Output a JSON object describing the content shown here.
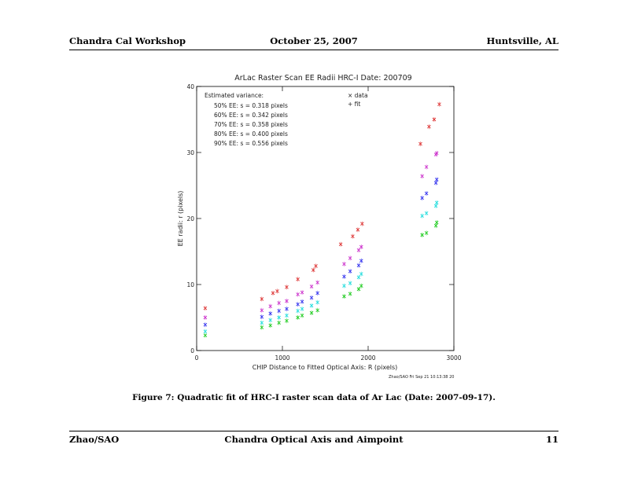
{
  "header": {
    "left": "Chandra Cal Workshop",
    "center": "October 25, 2007",
    "right": "Huntsville, AL"
  },
  "footer": {
    "left": "Zhao/SAO",
    "center": "Chandra Optical Axis and Aimpoint",
    "right": "11"
  },
  "caption": "Figure 7: Quadratic fit of HRC-I raster scan data of Ar Lac (Date: 2007-09-17).",
  "chart_data": {
    "type": "scatter",
    "title": "ArLac Raster Scan EE Radii  HRC-I  Date: 200709",
    "xlabel": "CHIP Distance to Fitted Optical Axis: R (pixels)",
    "ylabel": "EE radii: r (pixels)",
    "xlim": [
      0,
      3000
    ],
    "ylim": [
      0,
      40
    ],
    "xticks": [
      0,
      1000,
      2000,
      3000
    ],
    "yticks": [
      0,
      10,
      20,
      30,
      40
    ],
    "grid": false,
    "legend_entries": [
      "× data",
      "+ fit"
    ],
    "legend_position": "top",
    "annotation_title": "Estimated variance:",
    "annotations": [
      "50% EE: s = 0.318 pixels",
      "60% EE: s = 0.342 pixels",
      "70% EE: s = 0.358 pixels",
      "80% EE: s = 0.400 pixels",
      "90% EE: s = 0.556 pixels"
    ],
    "stamp": "Zhao/SAO Fri Sep 21 10:13:38 20",
    "series": [
      {
        "color": "#22cc22",
        "x": [
          100,
          760,
          860,
          960,
          1050,
          1180,
          1230,
          1340,
          1410,
          1720,
          1790,
          1890,
          1920,
          2630,
          2680,
          2790,
          2800
        ],
        "y": [
          2.3,
          3.5,
          3.8,
          4.2,
          4.5,
          5.0,
          5.3,
          5.7,
          6.1,
          8.2,
          8.6,
          9.3,
          9.8,
          17.5,
          17.8,
          18.9,
          19.4
        ]
      },
      {
        "color": "#22dddd",
        "x": [
          100,
          760,
          860,
          960,
          1050,
          1180,
          1230,
          1340,
          1410,
          1720,
          1790,
          1890,
          1920,
          2630,
          2680,
          2790,
          2800
        ],
        "y": [
          2.9,
          4.2,
          4.6,
          5.0,
          5.3,
          6.0,
          6.3,
          6.8,
          7.3,
          9.8,
          10.2,
          11.1,
          11.6,
          20.4,
          20.8,
          21.9,
          22.4
        ]
      },
      {
        "color": "#3333ee",
        "x": [
          100,
          760,
          860,
          960,
          1050,
          1180,
          1230,
          1340,
          1410,
          1720,
          1790,
          1890,
          1920,
          2630,
          2680,
          2790,
          2800
        ],
        "y": [
          3.9,
          5.1,
          5.6,
          6.0,
          6.3,
          7.0,
          7.4,
          8.0,
          8.7,
          11.2,
          12.0,
          12.9,
          13.6,
          23.1,
          23.8,
          25.4,
          25.9
        ]
      },
      {
        "color": "#cc33cc",
        "x": [
          100,
          760,
          860,
          960,
          1050,
          1180,
          1230,
          1340,
          1410,
          1720,
          1790,
          1890,
          1920,
          2630,
          2680,
          2790,
          2800
        ],
        "y": [
          5.0,
          6.1,
          6.7,
          7.2,
          7.5,
          8.5,
          8.8,
          9.7,
          10.3,
          13.1,
          14.0,
          15.2,
          15.7,
          26.4,
          27.8,
          29.7,
          29.9
        ]
      },
      {
        "color": "#dd3333",
        "x": [
          100,
          760,
          890,
          940,
          1050,
          1180,
          1360,
          1390,
          1680,
          1820,
          1880,
          1930,
          2610,
          2710,
          2770,
          2830
        ],
        "y": [
          6.4,
          7.8,
          8.7,
          9.0,
          9.6,
          10.8,
          12.2,
          12.8,
          16.1,
          17.3,
          18.3,
          19.2,
          31.3,
          33.9,
          35.0,
          37.3
        ]
      }
    ]
  }
}
